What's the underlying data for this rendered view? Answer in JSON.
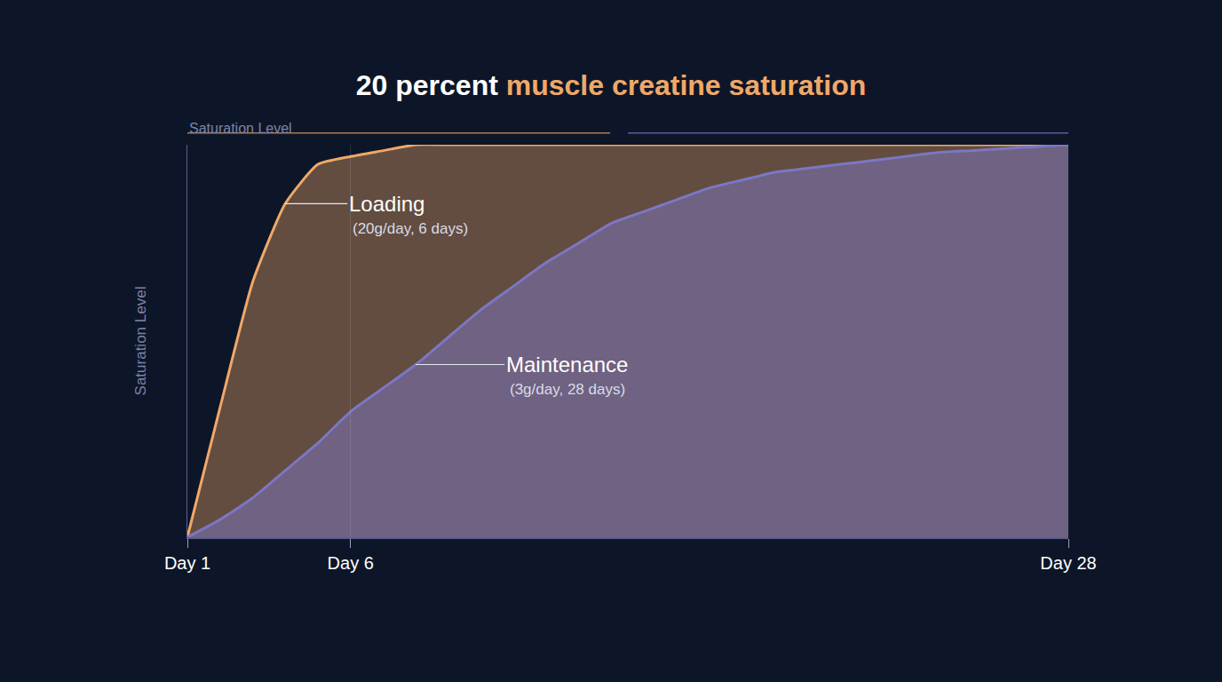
{
  "chart_data": {
    "type": "line",
    "title": "20 percent muscle creatine saturation",
    "title_highlight": "muscle creatine saturation",
    "ylabel": "Saturation Level",
    "annotations": [
      {
        "text": "Saturation Level"
      }
    ],
    "x": [
      1,
      2,
      3,
      4,
      5,
      6,
      7,
      8,
      9,
      10,
      11,
      12,
      13,
      14,
      15,
      16,
      17,
      18,
      19,
      20,
      21,
      22,
      23,
      24,
      25,
      26,
      27,
      28
    ],
    "series": [
      {
        "name": "Loading",
        "note": "(20g/day, 6 days)",
        "color": "#f0a868",
        "values": [
          0,
          33,
          65,
          85,
          95,
          97,
          98.5,
          100,
          100,
          100,
          100,
          100,
          100,
          100,
          100,
          100,
          100,
          100,
          100,
          100,
          100,
          100,
          100,
          100,
          100,
          100,
          100,
          100
        ]
      },
      {
        "name": "Maintenance",
        "note": "(3g/day, 28 days)",
        "color": "#7b77c4",
        "values": [
          0,
          4.5,
          10,
          17,
          24,
          32,
          38,
          44,
          51,
          58,
          64,
          70,
          75,
          80,
          83,
          86,
          89,
          91,
          93,
          94,
          95,
          96,
          97,
          98,
          98.5,
          99,
          99.5,
          100
        ]
      }
    ],
    "xlim": [
      1,
      28
    ],
    "xticks": [
      {
        "value": 1,
        "label": "Day 1"
      },
      {
        "value": 6,
        "label": "Day 6"
      },
      {
        "value": 28,
        "label": "Day 28"
      }
    ],
    "ylim": [
      0,
      100
    ],
    "tick_labels": "x",
    "grid": false
  }
}
